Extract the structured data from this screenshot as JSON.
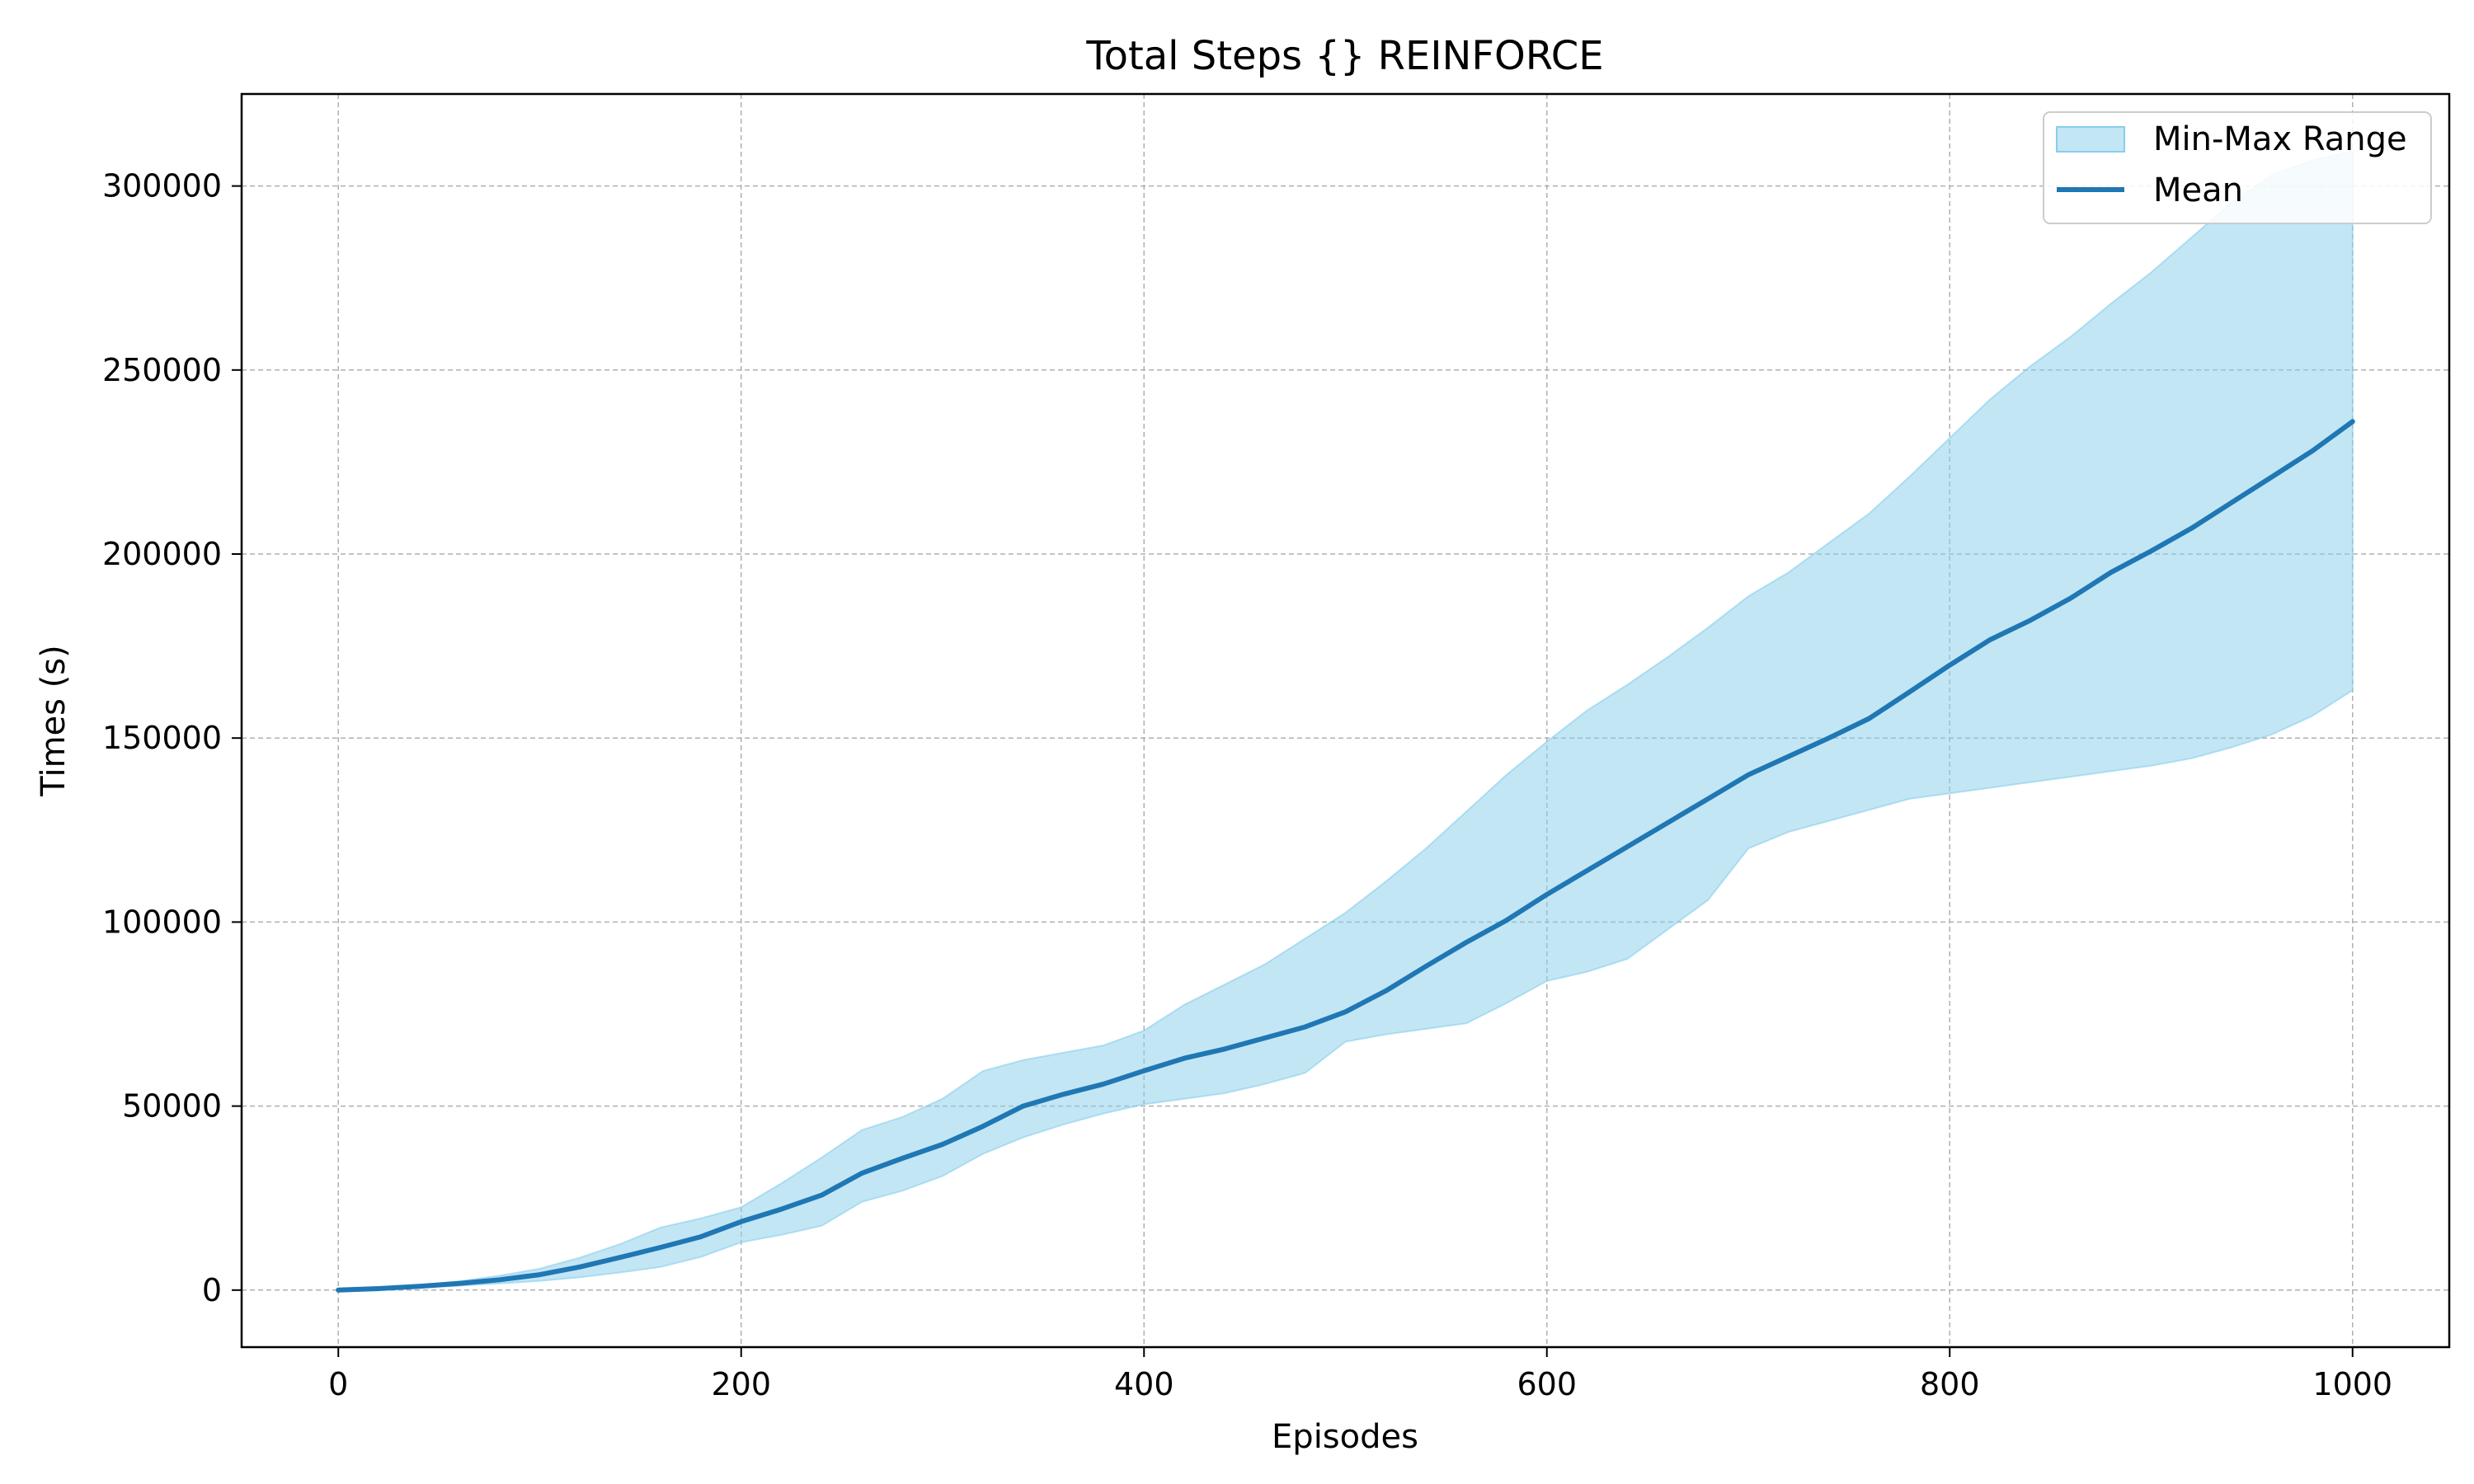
{
  "chart_data": {
    "type": "area",
    "title": "Total Steps {} REINFORCE",
    "xlabel": "Episodes",
    "ylabel": "Times (s)",
    "xlim": [
      -48,
      1048
    ],
    "ylim": [
      -15500,
      325000
    ],
    "xticks": [
      0,
      200,
      400,
      600,
      800,
      1000
    ],
    "yticks": [
      0,
      50000,
      100000,
      150000,
      200000,
      250000,
      300000
    ],
    "xtick_labels": [
      "0",
      "200",
      "400",
      "600",
      "800",
      "1000"
    ],
    "ytick_labels": [
      "0",
      "50000",
      "100000",
      "150000",
      "200000",
      "250000",
      "300000"
    ],
    "grid": true,
    "legend_position": "top-right",
    "colors": {
      "band": "#87ceeb",
      "mean": "#1f77b4",
      "grid": "#b0b0b0"
    },
    "series": [
      {
        "name": "Mean",
        "type": "line",
        "x": [
          0,
          20,
          40,
          60,
          80,
          100,
          120,
          140,
          160,
          180,
          200,
          220,
          240,
          260,
          280,
          300,
          320,
          340,
          360,
          380,
          400,
          420,
          440,
          460,
          480,
          500,
          520,
          540,
          560,
          580,
          600,
          620,
          640,
          660,
          680,
          700,
          720,
          740,
          760,
          780,
          800,
          820,
          840,
          860,
          880,
          900,
          920,
          940,
          960,
          980,
          1000
        ],
        "y": [
          0,
          400,
          1000,
          1800,
          2800,
          4200,
          6300,
          8900,
          11600,
          14500,
          18600,
          22000,
          25800,
          31800,
          35800,
          39600,
          44500,
          50000,
          53200,
          56000,
          59600,
          63000,
          65500,
          68500,
          71500,
          75600,
          81300,
          88000,
          94500,
          100500,
          107500,
          114000,
          120500,
          127000,
          133500,
          140000,
          145000,
          150000,
          155300,
          162500,
          169800,
          176700,
          182000,
          188000,
          195000,
          200800,
          207000,
          214000,
          221000,
          228000,
          236000
        ]
      },
      {
        "name": "Min-Max Range",
        "type": "band",
        "x": [
          0,
          20,
          40,
          60,
          80,
          100,
          120,
          140,
          160,
          180,
          200,
          220,
          240,
          260,
          280,
          300,
          320,
          340,
          360,
          380,
          400,
          420,
          440,
          460,
          480,
          500,
          520,
          540,
          560,
          580,
          600,
          620,
          640,
          660,
          680,
          700,
          720,
          740,
          760,
          780,
          800,
          820,
          840,
          860,
          880,
          900,
          920,
          940,
          960,
          980,
          1000
        ],
        "lower": [
          0,
          300,
          700,
          1200,
          1800,
          2500,
          3500,
          4800,
          6300,
          9000,
          13000,
          15000,
          17500,
          24000,
          27000,
          31000,
          37000,
          41500,
          45000,
          48000,
          50500,
          52000,
          53500,
          56000,
          59000,
          67500,
          69500,
          71000,
          72500,
          78000,
          84000,
          86500,
          90000,
          98000,
          106000,
          120000,
          124500,
          127500,
          130500,
          133500,
          135000,
          136500,
          138000,
          139500,
          141000,
          142500,
          144500,
          147500,
          151000,
          156000,
          163000
        ],
        "upper": [
          0,
          500,
          1300,
          2400,
          3900,
          5800,
          8800,
          12500,
          17000,
          19500,
          22500,
          29000,
          36000,
          43500,
          47000,
          52000,
          59500,
          62500,
          64500,
          66500,
          70500,
          77500,
          83000,
          88500,
          95500,
          102500,
          111000,
          120000,
          130000,
          140000,
          149000,
          157500,
          164500,
          172000,
          180000,
          188500,
          195000,
          203000,
          211000,
          221000,
          231500,
          242000,
          251000,
          259000,
          268000,
          276500,
          286000,
          295500,
          303000,
          307000,
          309500
        ]
      }
    ]
  }
}
